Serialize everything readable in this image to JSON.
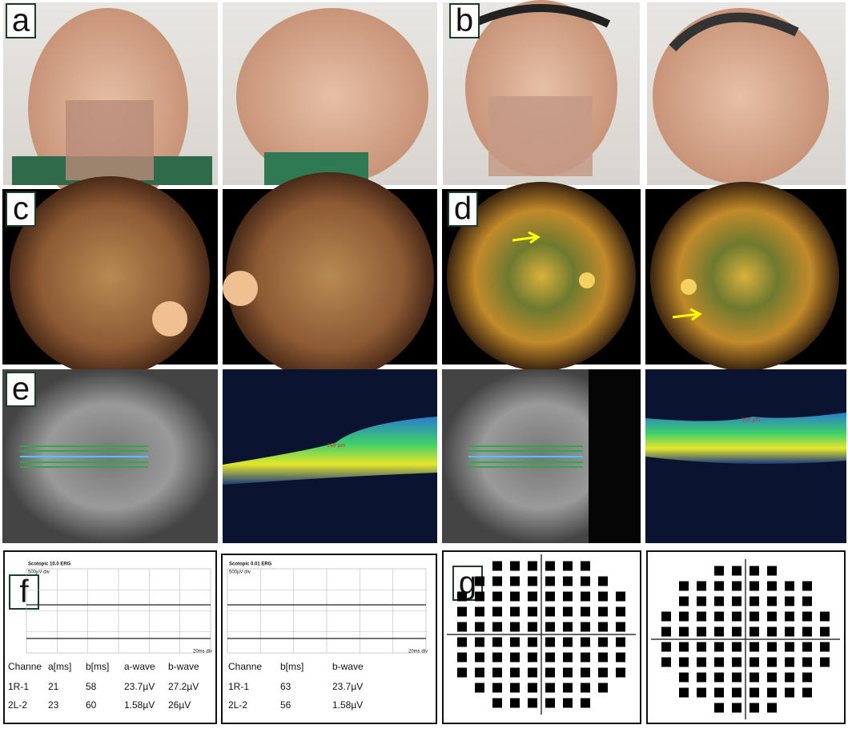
{
  "panels": {
    "labels": [
      "a",
      "b",
      "c",
      "d",
      "e",
      "f",
      "g"
    ]
  },
  "oct": {
    "left_thickness": "149 µm",
    "right_thickness": "155 µm"
  },
  "erg_left": {
    "title": "Scotopic 10.0 ERG",
    "scale": "500µV div",
    "time": "20ms div",
    "header": [
      "Channe",
      "a[ms]",
      "b[ms]",
      "a-wave",
      "b-wave"
    ],
    "rows": [
      [
        "1R-1",
        "21",
        "58",
        "23.7µV",
        "27.2µV"
      ],
      [
        "2L-2",
        "23",
        "60",
        "1.58µV",
        "26µV"
      ]
    ]
  },
  "erg_right": {
    "title": "Scotopic 0.01 ERG",
    "scale": "500µV div",
    "time": "20ms div",
    "header": [
      "Channe",
      "b[ms]",
      "b-wave"
    ],
    "rows": [
      [
        "1R-1",
        "63",
        "23.7µV"
      ],
      [
        "2L-2",
        "56",
        "1.58µV"
      ]
    ]
  }
}
